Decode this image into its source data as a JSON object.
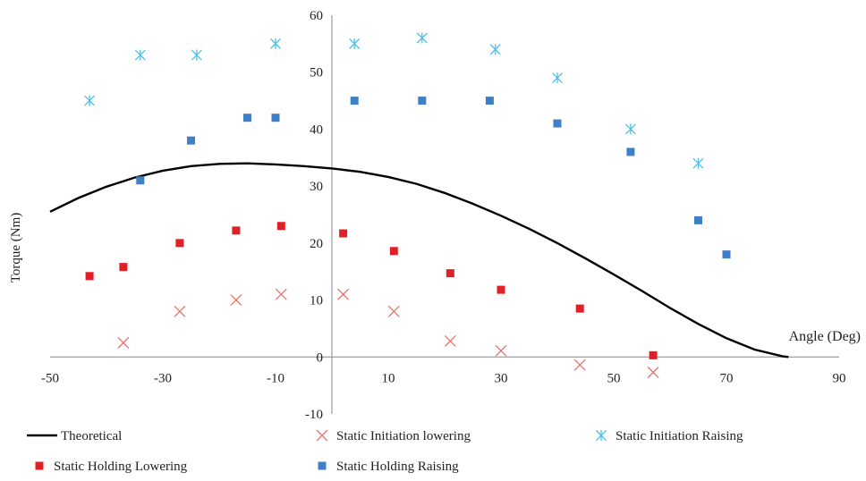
{
  "chart_data": {
    "type": "scatter",
    "xlabel": "Angle (Deg)",
    "ylabel": "Torque (Nm)",
    "xlim": [
      -50,
      90
    ],
    "ylim": [
      -10,
      60
    ],
    "x_ticks": [
      "-50",
      "-30",
      "-10",
      "10",
      "30",
      "50",
      "70",
      "90"
    ],
    "y_ticks": [
      "-10",
      "0",
      "10",
      "20",
      "30",
      "40",
      "50",
      "60"
    ],
    "grid": false,
    "legend_position": "bottom",
    "series": [
      {
        "name": "Theoretical",
        "type": "line",
        "color": "#000000",
        "x": [
          -50,
          -45,
          -40,
          -35,
          -30,
          -25,
          -20,
          -15,
          -10,
          -5,
          0,
          5,
          10,
          15,
          20,
          25,
          30,
          35,
          40,
          45,
          50,
          55,
          60,
          65,
          70,
          75,
          80,
          81
        ],
        "y": [
          25.5,
          27.9,
          29.9,
          31.5,
          32.7,
          33.5,
          33.9,
          34.0,
          33.8,
          33.5,
          33.1,
          32.5,
          31.6,
          30.4,
          28.8,
          26.9,
          24.8,
          22.5,
          20.0,
          17.3,
          14.5,
          11.6,
          8.6,
          5.8,
          3.3,
          1.3,
          0.1,
          0.0
        ]
      },
      {
        "name": "Static Initiation lowering",
        "type": "scatter",
        "marker": "x",
        "color": "#e8736e",
        "x": [
          -37,
          -27,
          -17,
          -9,
          2,
          11,
          21,
          30,
          44,
          57
        ],
        "y": [
          2.5,
          8,
          10,
          11,
          11,
          8,
          2.8,
          1.1,
          -1.4,
          -2.7
        ]
      },
      {
        "name": "Static Initiation Raising",
        "type": "scatter",
        "marker": "asterisk",
        "color": "#4ec0e8",
        "x": [
          -43,
          -34,
          -24,
          -10,
          4,
          16,
          29,
          40,
          53,
          65
        ],
        "y": [
          45,
          53,
          53,
          55,
          55,
          56,
          54,
          49,
          40,
          34
        ]
      },
      {
        "name": "Static Holding Lowering",
        "type": "scatter",
        "marker": "square",
        "color": "#e01f26",
        "x": [
          -43,
          -37,
          -27,
          -17,
          -9,
          2,
          11,
          21,
          30,
          44,
          57
        ],
        "y": [
          14.2,
          15.8,
          20,
          22.2,
          23,
          21.7,
          18.6,
          14.7,
          11.8,
          8.5,
          0.3
        ]
      },
      {
        "name": "Static Holding Raising",
        "type": "scatter",
        "marker": "square",
        "color": "#3f7fc6",
        "x": [
          -34,
          -25,
          -15,
          -10,
          4,
          16,
          28,
          40,
          53,
          65,
          70
        ],
        "y": [
          31,
          38,
          42,
          42,
          45,
          45,
          45,
          41,
          36,
          24,
          18
        ]
      }
    ]
  }
}
